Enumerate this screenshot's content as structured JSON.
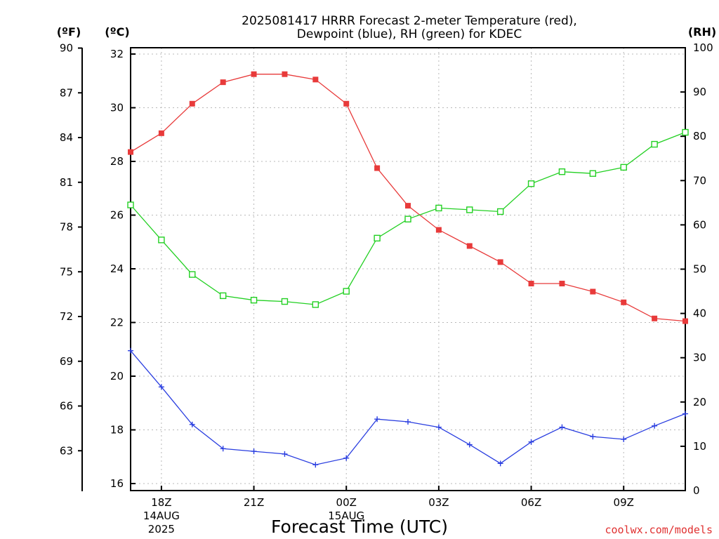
{
  "chart_data": {
    "type": "line",
    "title_lines": [
      "2025081417 HRRR Forecast 2-meter Temperature (red),",
      "Dewpoint (blue), RH (green) for KDEC"
    ],
    "xlabel": "Forecast Time (UTC)",
    "credit": "coolwx.com/models",
    "x_hours": [
      17,
      18,
      19,
      20,
      21,
      22,
      23,
      24,
      25,
      26,
      27,
      28,
      29,
      30,
      31,
      32,
      33,
      34,
      35
    ],
    "x_ticks": [
      {
        "hour": 18,
        "lines": [
          "18Z",
          "14AUG",
          "2025"
        ]
      },
      {
        "hour": 21,
        "lines": [
          "21Z"
        ]
      },
      {
        "hour": 24,
        "lines": [
          "00Z",
          "15AUG"
        ]
      },
      {
        "hour": 27,
        "lines": [
          "03Z"
        ]
      },
      {
        "hour": 30,
        "lines": [
          "06Z"
        ]
      },
      {
        "hour": 33,
        "lines": [
          "09Z"
        ]
      }
    ],
    "x_range": [
      17,
      35
    ],
    "y_left_f": {
      "unit": "(ºF)",
      "ticks": [
        "90",
        "87",
        "84",
        "81",
        "78",
        "75",
        "72",
        "69",
        "66",
        "63"
      ],
      "range": [
        60.8,
        90
      ]
    },
    "y_left_c": {
      "unit": "(ºC)",
      "ticks": [
        "32",
        "30",
        "28",
        "26",
        "24",
        "22",
        "20",
        "18",
        "16"
      ],
      "range": [
        16,
        32
      ]
    },
    "y_right_rh": {
      "unit": "(RH)",
      "ticks": [
        "100",
        "90",
        "80",
        "70",
        "60",
        "50",
        "40",
        "30",
        "20",
        "10",
        "0"
      ],
      "range": [
        0,
        100
      ]
    },
    "series": [
      {
        "name": "Temperature",
        "axis": "c",
        "color": "#e83a3a",
        "marker": "filled-square",
        "values": [
          28.35,
          29.05,
          30.15,
          30.95,
          31.25,
          31.25,
          31.05,
          30.15,
          27.75,
          26.35,
          25.45,
          24.85,
          24.25,
          23.45,
          23.45,
          23.15,
          22.75,
          22.15,
          22.05
        ]
      },
      {
        "name": "Dewpoint",
        "axis": "c",
        "color": "#2a3ee0",
        "marker": "plus",
        "values": [
          20.95,
          19.6,
          18.2,
          17.3,
          17.2,
          17.1,
          16.7,
          16.95,
          18.4,
          18.3,
          18.1,
          17.45,
          16.75,
          17.55,
          18.1,
          17.75,
          17.65,
          18.15,
          18.6
        ]
      },
      {
        "name": "RH",
        "axis": "rh",
        "color": "#22d022",
        "marker": "open-square",
        "values": [
          64.5,
          56.6,
          48.8,
          44.0,
          43.0,
          42.7,
          42.0,
          45.0,
          57.0,
          61.3,
          63.8,
          63.4,
          63.0,
          69.3,
          72.0,
          71.6,
          73.0,
          78.2,
          80.9
        ]
      }
    ],
    "grid": true
  }
}
